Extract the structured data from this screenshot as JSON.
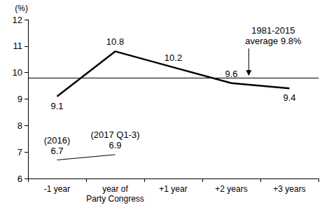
{
  "chart_data": {
    "type": "line",
    "y_label": "(%)",
    "categories": [
      "-1 year",
      "year of\nParty Congress",
      "+1 year",
      "+2 years",
      "+3 years"
    ],
    "series": [
      {
        "values": [
          9.1,
          10.8,
          10.2,
          9.6,
          9.4
        ],
        "color": "#000000",
        "marker": "none",
        "line_style": "solid",
        "data_labels": true
      },
      {
        "values": [
          6.7,
          6.9,
          null,
          null,
          null
        ],
        "value_labels": [
          "(2016)\n6.7",
          "(2017 Q1-3)\n6.9",
          null,
          null,
          null
        ],
        "color": "#000000",
        "marker": "none",
        "line_style": "solid",
        "data_labels": true
      }
    ],
    "reference_line": {
      "value": 9.8,
      "label": "1981-2015\naverage 9.8%"
    },
    "ylim": [
      6,
      12
    ],
    "yticks": [
      6,
      7,
      8,
      9,
      10,
      11,
      12
    ],
    "grid": false
  }
}
